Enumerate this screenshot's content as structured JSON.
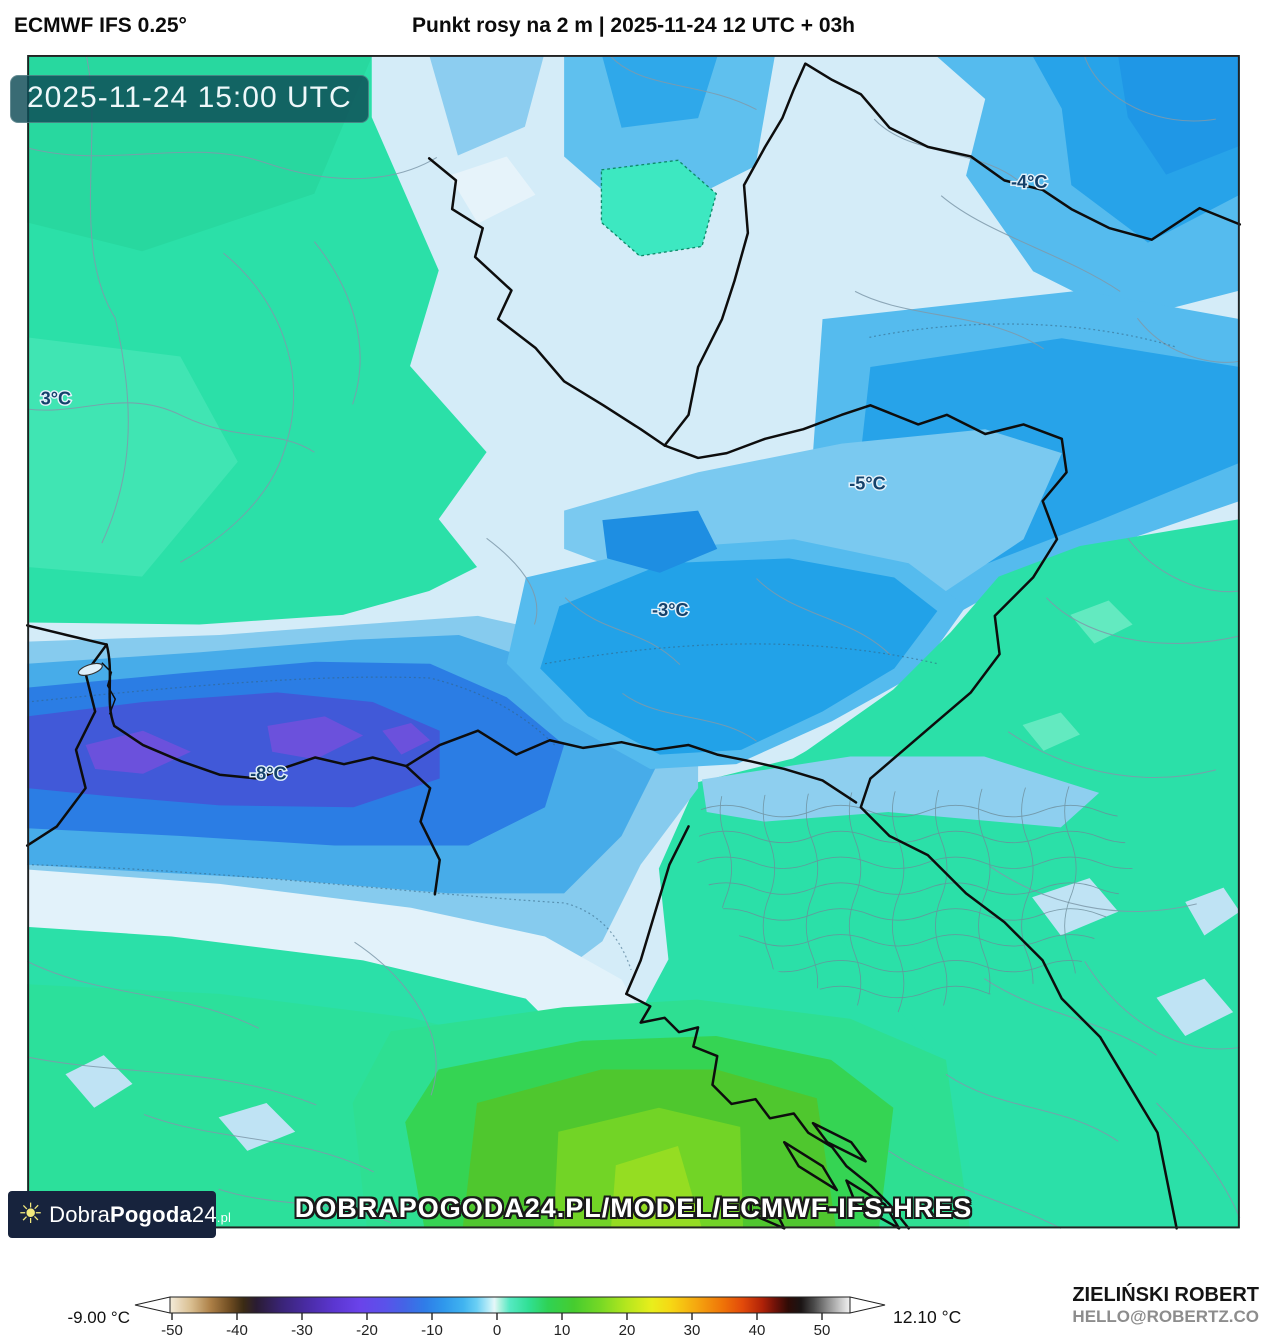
{
  "header": {
    "model": "ECMWF IFS 0.25°",
    "title": "Punkt rosy na 2 m | 2025-11-24 12 UTC + 03h"
  },
  "map": {
    "timestamp": "2025-11-24 15:00 UTC",
    "labels": [
      {
        "text": "-4°C"
      },
      {
        "text": "3°C"
      },
      {
        "text": "-5°C"
      },
      {
        "text": "-3°C"
      },
      {
        "text": "-8°C"
      }
    ],
    "palette": {
      "teal": "#2BE0A8",
      "pale_blue": "#D4ECF8",
      "light_blue": "#AADAF2",
      "sky_blue": "#55BBEE",
      "blue": "#22A2E8",
      "deep_blue": "#2B7DE4",
      "indigo": "#4159D8",
      "purple": "#6B51DC",
      "mint": "#3DE8C1",
      "green": "#35D453",
      "bright_green": "#4FC72E",
      "yellow_green": "#72D426"
    }
  },
  "logo": {
    "part1": "Dobra",
    "part2": "Pogoda",
    "part3": "24",
    "part4": ".pl"
  },
  "watermark": {
    "url": "DOBRAPOGODA24.PL/MODEL/ECMWF-IFS-HRES"
  },
  "colorbar": {
    "min_label": "-9.00 °C",
    "max_label": "12.10 °C",
    "ticks": [
      "-50",
      "-40",
      "-30",
      "-20",
      "-10",
      "0",
      "10",
      "20",
      "30",
      "40",
      "50"
    ],
    "gradient": [
      [
        0,
        "#F3EBD9"
      ],
      [
        3.1,
        "#D9BE90"
      ],
      [
        6.0,
        "#AC7F46"
      ],
      [
        8.9,
        "#6D4B21"
      ],
      [
        10.8,
        "#3B2B14"
      ],
      [
        12.7,
        "#2A1C33"
      ],
      [
        16.5,
        "#3A2478"
      ],
      [
        20.3,
        "#4A2CA6"
      ],
      [
        24.1,
        "#5B36D0"
      ],
      [
        27.9,
        "#6A43EA"
      ],
      [
        31.7,
        "#5A52EA"
      ],
      [
        34.6,
        "#4365E6"
      ],
      [
        37.5,
        "#2F7DE8"
      ],
      [
        40.3,
        "#2F98EC"
      ],
      [
        43.2,
        "#41B4F0"
      ],
      [
        45.1,
        "#69CEF4"
      ],
      [
        47.0,
        "#BEEEF8"
      ],
      [
        47.7,
        "#E6F7F9"
      ],
      [
        48.4,
        "#B7F2E2"
      ],
      [
        49.9,
        "#57E9C3"
      ],
      [
        52.7,
        "#30E095"
      ],
      [
        55.6,
        "#2FD254"
      ],
      [
        59.4,
        "#46CC2F"
      ],
      [
        63.2,
        "#75D825"
      ],
      [
        67.0,
        "#B3E61E"
      ],
      [
        70.9,
        "#E9EE1C"
      ],
      [
        73.7,
        "#F6D714"
      ],
      [
        77.5,
        "#F5A60F"
      ],
      [
        81.3,
        "#EF7308"
      ],
      [
        84.2,
        "#E24A0A"
      ],
      [
        87.1,
        "#B02208"
      ],
      [
        89.0,
        "#6F1208"
      ],
      [
        90.9,
        "#2F0B06"
      ],
      [
        92.8,
        "#1A1414"
      ],
      [
        94.7,
        "#4A4A4A"
      ],
      [
        96.6,
        "#8A8A8A"
      ],
      [
        98.5,
        "#C6C6C6"
      ],
      [
        100,
        "#F2F2F2"
      ]
    ]
  },
  "attribution": {
    "name": "ZIELIŃSKI ROBERT",
    "email": "HELLO@ROBERTZ.CO"
  }
}
